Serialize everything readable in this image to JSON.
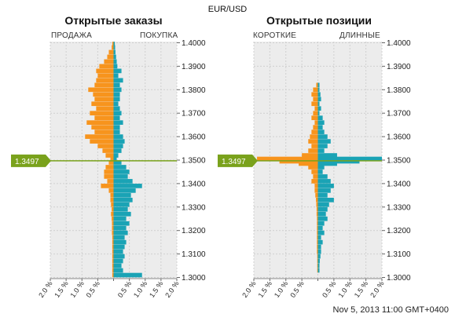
{
  "header": {
    "pair": "EUR/USD",
    "timestamp": "Nov 5, 2013 11:00 GMT+0400"
  },
  "colors": {
    "sell": "#f7941d",
    "buy": "#1aa3b5",
    "price": "#7aa21c",
    "grid": "#cfcfcf",
    "plot_bg": "#ececec"
  },
  "current_price": "1.3497",
  "chart_data": [
    {
      "type": "bar",
      "orientation": "horizontal",
      "title": "Открытые заказы",
      "left_label": "ПРОДАЖА",
      "right_label": "ПОКУПКА",
      "x_ticks": [
        "2.0 %",
        "1.5 %",
        "1.0 %",
        "0.5 %",
        "",
        "0.5 %",
        "1.0 %",
        "1.5 %",
        "2.0 %"
      ],
      "y_ticks": [
        "1.4000",
        "1.3900",
        "1.3800",
        "1.3700",
        "1.3600",
        "1.3500",
        "1.3400",
        "1.3300",
        "1.3200",
        "1.3100",
        "1.3000"
      ],
      "xlim": [
        -2.0,
        2.0
      ],
      "ylim": [
        1.2995,
        1.4005
      ],
      "current_price": 1.3497,
      "bin": 0.001,
      "sell_profile": [
        [
          1.3995,
          0.04
        ],
        [
          1.398,
          0.06
        ],
        [
          1.396,
          0.15
        ],
        [
          1.394,
          0.2
        ],
        [
          1.392,
          0.3
        ],
        [
          1.39,
          0.45
        ],
        [
          1.388,
          0.55
        ],
        [
          1.386,
          0.5
        ],
        [
          1.384,
          0.55
        ],
        [
          1.382,
          0.6
        ],
        [
          1.38,
          0.8
        ],
        [
          1.378,
          0.65
        ],
        [
          1.376,
          0.6
        ],
        [
          1.374,
          0.7
        ],
        [
          1.372,
          0.55
        ],
        [
          1.37,
          0.75
        ],
        [
          1.368,
          0.6
        ],
        [
          1.366,
          0.85
        ],
        [
          1.364,
          0.7
        ],
        [
          1.362,
          0.6
        ],
        [
          1.36,
          0.9
        ],
        [
          1.358,
          0.75
        ],
        [
          1.356,
          0.5
        ],
        [
          1.354,
          0.35
        ],
        [
          1.352,
          0.25
        ],
        [
          1.3505,
          0.1
        ]
      ],
      "buy_profile": [
        [
          1.3995,
          0.04
        ],
        [
          1.398,
          0.05
        ],
        [
          1.396,
          0.06
        ],
        [
          1.394,
          0.08
        ],
        [
          1.392,
          0.1
        ],
        [
          1.39,
          0.12
        ],
        [
          1.388,
          0.25
        ],
        [
          1.386,
          0.15
        ],
        [
          1.384,
          0.3
        ],
        [
          1.382,
          0.2
        ],
        [
          1.38,
          0.25
        ],
        [
          1.378,
          0.2
        ],
        [
          1.376,
          0.2
        ],
        [
          1.374,
          0.15
        ],
        [
          1.372,
          0.2
        ],
        [
          1.37,
          0.25
        ],
        [
          1.368,
          0.2
        ],
        [
          1.366,
          0.3
        ],
        [
          1.364,
          0.2
        ],
        [
          1.362,
          0.2
        ],
        [
          1.36,
          0.3
        ],
        [
          1.358,
          0.35
        ],
        [
          1.356,
          0.3
        ],
        [
          1.354,
          0.25
        ],
        [
          1.352,
          0.15
        ],
        [
          1.3505,
          0.1
        ]
      ],
      "sell_below": [
        [
          1.349,
          0.15
        ],
        [
          1.347,
          0.25
        ],
        [
          1.345,
          0.3
        ],
        [
          1.343,
          0.3
        ],
        [
          1.341,
          0.2
        ],
        [
          1.339,
          0.4
        ],
        [
          1.337,
          0.15
        ],
        [
          1.335,
          0.1
        ],
        [
          1.333,
          0.1
        ],
        [
          1.331,
          0.08
        ],
        [
          1.329,
          0.06
        ],
        [
          1.327,
          0.08
        ],
        [
          1.325,
          0.06
        ],
        [
          1.323,
          0.05
        ],
        [
          1.321,
          0.05
        ],
        [
          1.319,
          0.05
        ],
        [
          1.317,
          0.04
        ],
        [
          1.315,
          0.04
        ],
        [
          1.313,
          0.04
        ],
        [
          1.311,
          0.04
        ],
        [
          1.309,
          0.04
        ],
        [
          1.307,
          0.04
        ],
        [
          1.305,
          0.04
        ],
        [
          1.303,
          0.04
        ],
        [
          1.301,
          0.04
        ]
      ],
      "buy_below": [
        [
          1.349,
          0.25
        ],
        [
          1.347,
          0.4
        ],
        [
          1.345,
          0.5
        ],
        [
          1.343,
          0.45
        ],
        [
          1.341,
          0.6
        ],
        [
          1.339,
          0.9
        ],
        [
          1.337,
          0.7
        ],
        [
          1.335,
          0.55
        ],
        [
          1.333,
          0.6
        ],
        [
          1.331,
          0.5
        ],
        [
          1.329,
          0.45
        ],
        [
          1.327,
          0.55
        ],
        [
          1.325,
          0.4
        ],
        [
          1.323,
          0.5
        ],
        [
          1.321,
          0.4
        ],
        [
          1.319,
          0.45
        ],
        [
          1.317,
          0.35
        ],
        [
          1.315,
          0.4
        ],
        [
          1.313,
          0.35
        ],
        [
          1.311,
          0.3
        ],
        [
          1.309,
          0.35
        ],
        [
          1.307,
          0.3
        ],
        [
          1.305,
          0.25
        ],
        [
          1.303,
          0.3
        ],
        [
          1.301,
          0.9
        ]
      ]
    },
    {
      "type": "bar",
      "orientation": "horizontal",
      "title": "Открытые позиции",
      "left_label": "КОРОТКИЕ",
      "right_label": "ДЛИННЫЕ",
      "x_ticks": [
        "2.0 %",
        "1.5 %",
        "1.0 %",
        "0.5 %",
        "",
        "0.5 %",
        "1.0 %",
        "1.5 %",
        "2.0 %"
      ],
      "y_ticks": [
        "1.4000",
        "1.3900",
        "1.3800",
        "1.3700",
        "1.3600",
        "1.3500",
        "1.3400",
        "1.3300",
        "1.3200",
        "1.3100",
        "1.3000"
      ],
      "xlim": [
        -2.0,
        2.0
      ],
      "ylim": [
        1.2995,
        1.4005
      ],
      "current_price": 1.3497,
      "bin": 0.001,
      "short_profile": [
        [
          1.382,
          0.05
        ],
        [
          1.38,
          0.15
        ],
        [
          1.378,
          0.2
        ],
        [
          1.376,
          0.15
        ],
        [
          1.374,
          0.2
        ],
        [
          1.372,
          0.1
        ],
        [
          1.37,
          0.15
        ],
        [
          1.368,
          0.2
        ],
        [
          1.366,
          0.1
        ],
        [
          1.364,
          0.15
        ],
        [
          1.362,
          0.2
        ],
        [
          1.36,
          0.25
        ],
        [
          1.358,
          0.3
        ],
        [
          1.356,
          0.2
        ],
        [
          1.354,
          0.3
        ],
        [
          1.352,
          0.5
        ],
        [
          1.3505,
          1.9
        ],
        [
          1.3495,
          1.2
        ],
        [
          1.3485,
          0.6
        ],
        [
          1.347,
          0.3
        ],
        [
          1.345,
          0.2
        ],
        [
          1.343,
          0.15
        ],
        [
          1.341,
          0.2
        ],
        [
          1.339,
          0.1
        ],
        [
          1.337,
          0.1
        ],
        [
          1.335,
          0.08
        ],
        [
          1.333,
          0.06
        ],
        [
          1.331,
          0.05
        ],
        [
          1.329,
          0.04
        ],
        [
          1.327,
          0.04
        ],
        [
          1.325,
          0.03
        ],
        [
          1.323,
          0.03
        ],
        [
          1.321,
          0.03
        ],
        [
          1.319,
          0.03
        ],
        [
          1.317,
          0.03
        ],
        [
          1.315,
          0.03
        ],
        [
          1.313,
          0.03
        ],
        [
          1.311,
          0.03
        ],
        [
          1.309,
          0.02
        ],
        [
          1.307,
          0.02
        ],
        [
          1.305,
          0.02
        ],
        [
          1.303,
          0.02
        ]
      ],
      "long_profile": [
        [
          1.382,
          0.05
        ],
        [
          1.38,
          0.05
        ],
        [
          1.378,
          0.08
        ],
        [
          1.376,
          0.1
        ],
        [
          1.374,
          0.05
        ],
        [
          1.372,
          0.1
        ],
        [
          1.37,
          0.05
        ],
        [
          1.368,
          0.15
        ],
        [
          1.366,
          0.2
        ],
        [
          1.364,
          0.15
        ],
        [
          1.362,
          0.2
        ],
        [
          1.36,
          0.3
        ],
        [
          1.358,
          0.4
        ],
        [
          1.356,
          0.3
        ],
        [
          1.354,
          0.2
        ],
        [
          1.352,
          0.6
        ],
        [
          1.3505,
          2.0
        ],
        [
          1.3495,
          1.3
        ],
        [
          1.3485,
          0.6
        ],
        [
          1.347,
          0.2
        ],
        [
          1.345,
          0.15
        ],
        [
          1.343,
          0.3
        ],
        [
          1.341,
          0.4
        ],
        [
          1.339,
          0.5
        ],
        [
          1.337,
          0.4
        ],
        [
          1.335,
          0.3
        ],
        [
          1.333,
          0.5
        ],
        [
          1.331,
          0.35
        ],
        [
          1.329,
          0.3
        ],
        [
          1.327,
          0.25
        ],
        [
          1.325,
          0.3
        ],
        [
          1.323,
          0.2
        ],
        [
          1.321,
          0.15
        ],
        [
          1.319,
          0.2
        ],
        [
          1.317,
          0.1
        ],
        [
          1.315,
          0.15
        ],
        [
          1.313,
          0.1
        ],
        [
          1.311,
          0.1
        ],
        [
          1.309,
          0.08
        ],
        [
          1.307,
          0.06
        ],
        [
          1.305,
          0.05
        ],
        [
          1.303,
          0.05
        ]
      ]
    }
  ]
}
